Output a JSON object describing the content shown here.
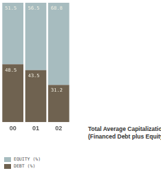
{
  "chart_data": {
    "type": "bar",
    "title": "Total Average Capitalization",
    "subtitle": "(Financed Debt plus Equity)",
    "categories": [
      "00",
      "01",
      "02"
    ],
    "series": [
      {
        "name": "DEBT (%)",
        "color": "#6f6250",
        "values": [
          48.5,
          43.5,
          31.2
        ]
      },
      {
        "name": "EQUITY (%)",
        "color": "#a7bcbf",
        "values": [
          51.5,
          56.5,
          68.8
        ]
      }
    ],
    "ylim": [
      0,
      100
    ],
    "stacked": true,
    "data_labels": true,
    "tick_labels": "x",
    "legend": "bottom-left",
    "grid": false
  }
}
